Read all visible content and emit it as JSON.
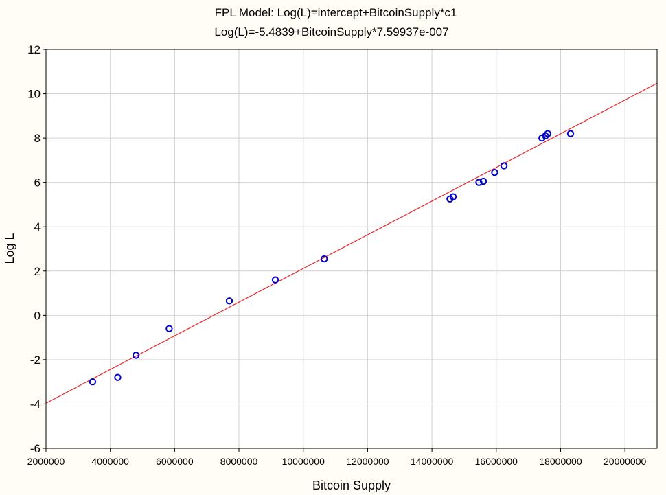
{
  "chart_data": {
    "type": "scatter",
    "title": "FPL Model: Log(L)=intercept+BitcoinSupply*c1",
    "subtitle": "Log(L)=-5.4839+BitcoinSupply*7.59937e-007",
    "xlabel": "Bitcoin Supply",
    "ylabel": "Log L",
    "xlim": [
      2000000,
      21000000
    ],
    "ylim": [
      -6,
      12
    ],
    "x_ticks": [
      "2000000",
      "4000000",
      "6000000",
      "8000000",
      "10000000",
      "12000000",
      "14000000",
      "16000000",
      "18000000",
      "20000000"
    ],
    "y_ticks": [
      "-6",
      "-4",
      "-2",
      "0",
      "2",
      "4",
      "6",
      "8",
      "10",
      "12"
    ],
    "grid": true,
    "colors": {
      "points": "#0000cc",
      "fit_line": "#e8282b",
      "grid": "#d2d2d2",
      "background": "#fffdf6"
    },
    "fit_line": {
      "intercept": -5.4839,
      "slope": 7.59937e-07
    },
    "series": [
      {
        "points": [
          {
            "x": 3450000,
            "y": -3.0
          },
          {
            "x": 4230000,
            "y": -2.8
          },
          {
            "x": 4800000,
            "y": -1.8
          },
          {
            "x": 5830000,
            "y": -0.6
          },
          {
            "x": 7700000,
            "y": 0.65
          },
          {
            "x": 9130000,
            "y": 1.6
          },
          {
            "x": 10650000,
            "y": 2.55
          },
          {
            "x": 14560000,
            "y": 5.25
          },
          {
            "x": 14660000,
            "y": 5.35
          },
          {
            "x": 15460000,
            "y": 6.0
          },
          {
            "x": 15600000,
            "y": 6.05
          },
          {
            "x": 15950000,
            "y": 6.45
          },
          {
            "x": 16240000,
            "y": 6.75
          },
          {
            "x": 17420000,
            "y": 8.0
          },
          {
            "x": 17530000,
            "y": 8.1
          },
          {
            "x": 17600000,
            "y": 8.2
          },
          {
            "x": 18310000,
            "y": 8.2
          }
        ]
      }
    ]
  }
}
